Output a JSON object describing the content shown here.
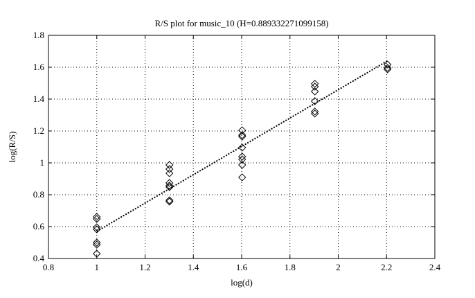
{
  "chart_data": {
    "type": "scatter",
    "title": "R/S plot for music_10 (H=0.889332271099158)",
    "x_label": "log(d)",
    "y_label": "log(R/S)",
    "xlim": [
      0.8,
      2.4
    ],
    "xticks": [
      0.8,
      1,
      1.2,
      1.4,
      1.6,
      1.8,
      2,
      2.2,
      2.4
    ],
    "ylim": [
      0.4,
      1.8
    ],
    "yticks": [
      0.4,
      0.6,
      0.8,
      1,
      1.2,
      1.4,
      1.6,
      1.8
    ],
    "grid": true,
    "series": [
      {
        "color": "#000000",
        "marker": "diamond",
        "x": [
          1,
          1,
          1,
          1,
          1,
          1,
          1,
          1.301,
          1.301,
          1.301,
          1.301,
          1.301,
          1.301,
          1.301,
          1.301,
          1.602,
          1.602,
          1.602,
          1.602,
          1.602,
          1.602,
          1.602,
          1.602,
          1.903,
          1.903,
          1.903,
          1.903,
          1.903,
          1.903,
          2.204,
          2.204,
          2.204
        ],
        "y": [
          0.661,
          0.648,
          0.596,
          0.583,
          0.5,
          0.487,
          0.43,
          0.987,
          0.961,
          0.935,
          0.874,
          0.857,
          0.848,
          0.765,
          0.757,
          1.204,
          1.174,
          1.165,
          1.096,
          1.039,
          1.022,
          0.987,
          0.909,
          1.496,
          1.478,
          1.448,
          1.387,
          1.322,
          1.309,
          1.617,
          1.596,
          1.587
        ]
      },
      {
        "color": "#000000",
        "line_style": "dotted",
        "x": [
          1,
          2.204
        ],
        "y": [
          0.57,
          1.64
        ]
      }
    ]
  }
}
